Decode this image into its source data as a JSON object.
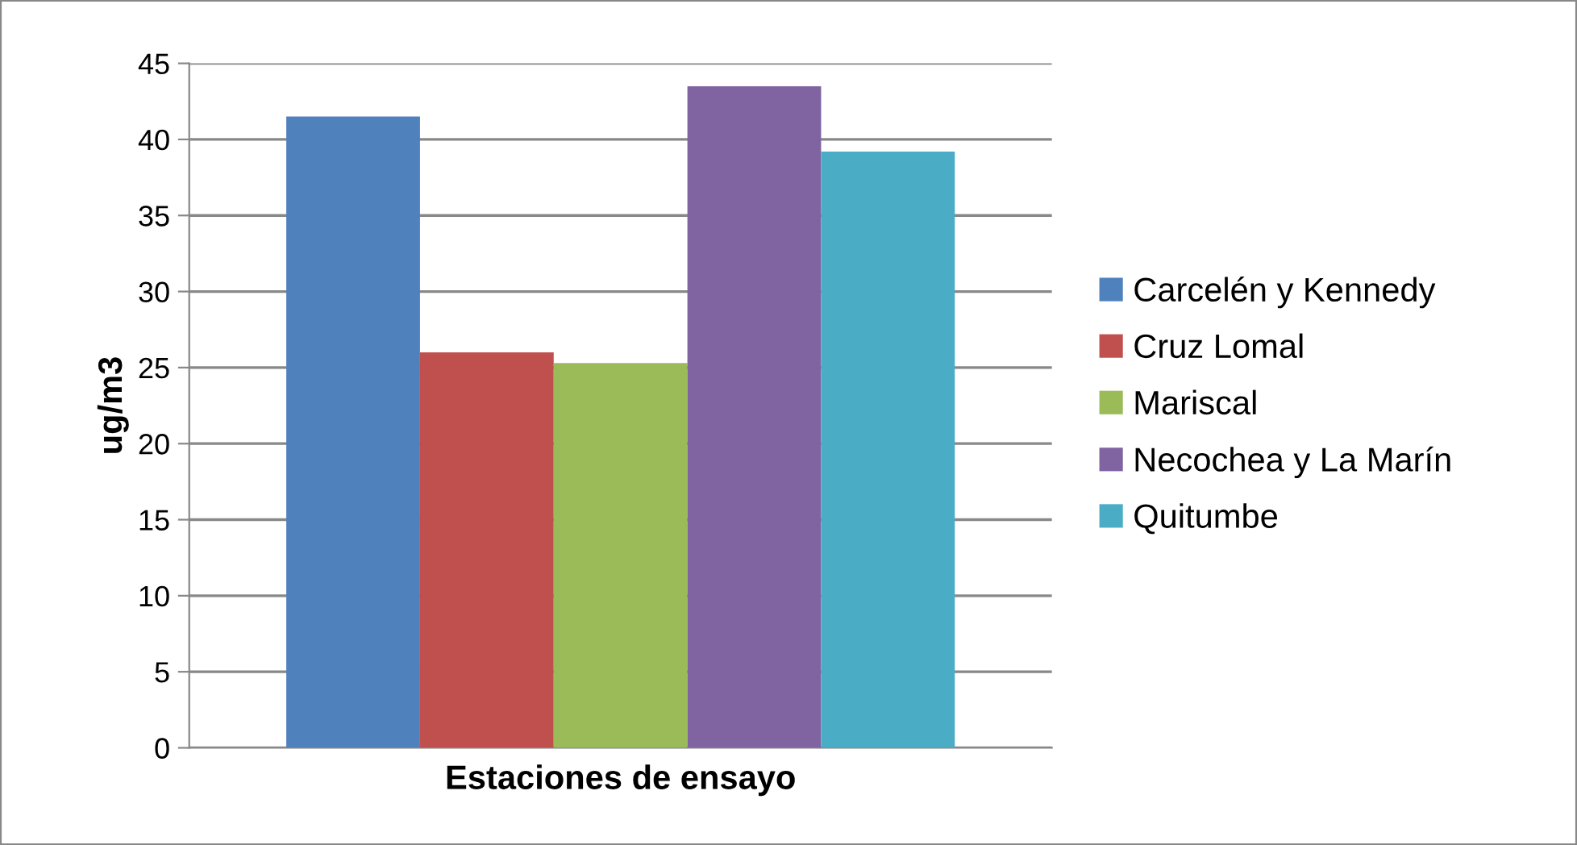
{
  "chart_data": {
    "type": "bar",
    "xlabel": "Estaciones de ensayo",
    "ylabel": "ug/m3",
    "categories": [
      null
    ],
    "series": [
      {
        "name": "Carcelén y Kennedy",
        "color": "#4f81bd",
        "values": [
          41.5
        ]
      },
      {
        "name": "Cruz Lomal",
        "color": "#c0504d",
        "values": [
          26.0
        ]
      },
      {
        "name": "Mariscal",
        "color": "#9bbb59",
        "values": [
          25.3
        ]
      },
      {
        "name": "Necochea y La Marín",
        "color": "#8064a2",
        "values": [
          43.5
        ]
      },
      {
        "name": "Quitumbe",
        "color": "#4bacc6",
        "values": [
          39.2
        ]
      }
    ],
    "ylim": [
      0,
      45
    ],
    "yticks": [
      0,
      5,
      10,
      15,
      20,
      25,
      30,
      35,
      40,
      45
    ],
    "grid": "y",
    "legend": "right"
  }
}
